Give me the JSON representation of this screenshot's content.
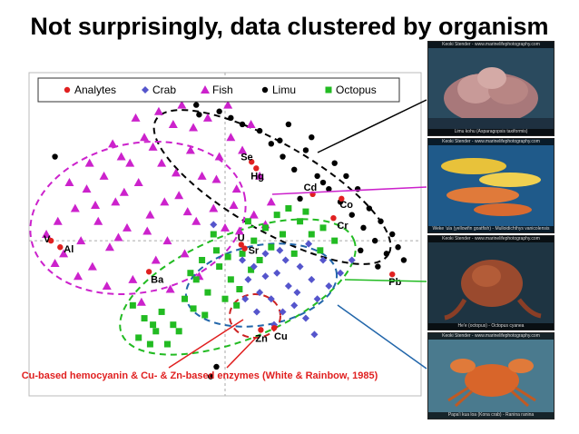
{
  "slide": {
    "title": "Not surprisingly, data clustered by organism",
    "annotation": "Cu-based hemocyanin & Cu- & Zn-based enzymes (White & Rainbow, 1985)",
    "annotation_color": "#e02020"
  },
  "photos": [
    {
      "name": "Limu",
      "credit": "Keoki Stender - www.marinelifephotography.com",
      "caption": "Limu kohu (Asparagopsis taxiformis)",
      "line_color": "#000000"
    },
    {
      "name": "Fish",
      "credit": "Keoki Stender - www.marinelifephotography.com",
      "caption": "Weke 'ula (yellowfin goatfish) - Mulloidichthys vanicolensis",
      "line_color": "#cc22cc"
    },
    {
      "name": "Octopus",
      "credit": "Keoki Stender - www.marinelifephotography.com",
      "caption": "He'e (octopus) - Octopus cyanea",
      "line_color": "#22bb22"
    },
    {
      "name": "Crab",
      "credit": "Keoki Stender - www.marinelifephotography.com",
      "caption": "Papa'i kua loa (Kona crab) - Ranina ranina",
      "line_color": "#2266aa"
    }
  ],
  "chart_data": {
    "type": "scatter",
    "title": "",
    "xlabel": "",
    "ylabel": "",
    "xlim": [
      -3.4,
      3.4
    ],
    "ylim": [
      -2.4,
      2.6
    ],
    "grid": "dashed crosshair at origin",
    "legend_position": "top",
    "series": [
      {
        "name": "Analytes",
        "color": "#e02020",
        "marker": "circle",
        "points": [
          [
            -3.02,
            0.0
          ],
          [
            -2.86,
            -0.1
          ],
          [
            -1.32,
            -0.48
          ],
          [
            0.46,
            1.22
          ],
          [
            0.54,
            1.12
          ],
          [
            1.52,
            0.72
          ],
          [
            2.02,
            0.65
          ],
          [
            1.88,
            0.35
          ],
          [
            0.28,
            -0.06
          ],
          [
            0.34,
            -0.12
          ],
          [
            2.9,
            -0.52
          ],
          [
            0.62,
            -1.38
          ],
          [
            0.85,
            -1.35
          ]
        ],
        "labels": [
          "V",
          "Al",
          "Ba",
          "Se",
          "Hg",
          "Cd",
          "Co",
          "Cr",
          "U",
          "Sr",
          "Pb",
          "Zn",
          "Cu"
        ]
      },
      {
        "name": "Crab",
        "color": "#5555cc",
        "marker": "diamond",
        "points": [
          [
            0.3,
            -0.3
          ],
          [
            0.5,
            -0.4
          ],
          [
            0.7,
            -0.2
          ],
          [
            0.9,
            -0.5
          ],
          [
            1.1,
            -0.7
          ],
          [
            1.3,
            -0.4
          ],
          [
            1.5,
            -0.6
          ],
          [
            0.6,
            -0.8
          ],
          [
            0.8,
            -0.9
          ],
          [
            1.0,
            -1.1
          ],
          [
            1.2,
            -1.0
          ],
          [
            1.4,
            -1.2
          ],
          [
            0.4,
            -0.6
          ],
          [
            0.7,
            -0.55
          ],
          [
            1.6,
            -0.9
          ],
          [
            1.8,
            -0.7
          ],
          [
            2.0,
            -0.5
          ],
          [
            1.7,
            -0.3
          ],
          [
            0.55,
            -1.1
          ],
          [
            0.85,
            -1.3
          ],
          [
            1.05,
            -0.3
          ],
          [
            1.25,
            -0.8
          ],
          [
            0.35,
            -0.9
          ],
          [
            1.45,
            -0.05
          ],
          [
            -0.2,
            0.25
          ],
          [
            2.2,
            -0.3
          ],
          [
            0.95,
            -0.15
          ],
          [
            1.55,
            -1.45
          ]
        ]
      },
      {
        "name": "Fish",
        "color": "#cc22cc",
        "marker": "triangle",
        "points": [
          [
            -3.1,
            0.1
          ],
          [
            -2.9,
            0.3
          ],
          [
            -2.8,
            -0.2
          ],
          [
            -2.6,
            0.5
          ],
          [
            -2.5,
            0.0
          ],
          [
            -2.4,
            0.8
          ],
          [
            -2.3,
            -0.4
          ],
          [
            -2.2,
            0.3
          ],
          [
            -2.1,
            1.0
          ],
          [
            -2.0,
            -0.1
          ],
          [
            -1.9,
            0.6
          ],
          [
            -1.8,
            1.3
          ],
          [
            -1.7,
            0.2
          ],
          [
            -1.6,
            -0.6
          ],
          [
            -1.5,
            0.9
          ],
          [
            -1.4,
            1.6
          ],
          [
            -1.3,
            0.4
          ],
          [
            -1.2,
            -0.3
          ],
          [
            -1.1,
            1.2
          ],
          [
            -1.0,
            0.0
          ],
          [
            -0.9,
            1.8
          ],
          [
            -0.8,
            0.7
          ],
          [
            -0.7,
            -0.2
          ],
          [
            -0.6,
            1.4
          ],
          [
            -0.5,
            0.3
          ],
          [
            -0.4,
            1.0
          ],
          [
            -0.3,
            1.9
          ],
          [
            -0.2,
            0.5
          ],
          [
            -0.1,
            1.3
          ],
          [
            0.0,
            0.2
          ],
          [
            0.1,
            1.6
          ],
          [
            0.2,
            0.8
          ],
          [
            0.3,
            1.4
          ],
          [
            0.5,
            0.4
          ],
          [
            0.6,
            1.0
          ],
          [
            0.8,
            0.6
          ],
          [
            -2.7,
            0.9
          ],
          [
            -2.35,
            1.2
          ],
          [
            -1.95,
            1.5
          ],
          [
            -1.55,
            1.9
          ],
          [
            -1.15,
            2.0
          ],
          [
            -0.75,
            2.1
          ],
          [
            -0.35,
            2.2
          ],
          [
            0.05,
            2.1
          ],
          [
            0.45,
            1.8
          ],
          [
            -2.55,
            -0.55
          ],
          [
            -2.05,
            -0.7
          ],
          [
            -1.45,
            -0.95
          ],
          [
            -0.95,
            -0.75
          ],
          [
            -0.45,
            -0.55
          ],
          [
            -1.75,
            0.75
          ],
          [
            -1.25,
            1.45
          ],
          [
            -0.65,
            0.45
          ],
          [
            -0.15,
            0.95
          ],
          [
            -2.25,
            0.55
          ],
          [
            -1.85,
            0.05
          ],
          [
            -1.05,
            0.6
          ],
          [
            -0.55,
            1.75
          ],
          [
            0.25,
            0.15
          ],
          [
            0.7,
            0.25
          ],
          [
            -2.95,
            -0.35
          ],
          [
            -1.35,
            0.15
          ],
          [
            -0.85,
            1.05
          ],
          [
            0.15,
            0.55
          ],
          [
            -1.65,
            1.2
          ]
        ]
      },
      {
        "name": "Limu",
        "color": "#000000",
        "marker": "circle",
        "points": [
          [
            -0.5,
            2.1
          ],
          [
            -0.3,
            2.2
          ],
          [
            -0.1,
            2.0
          ],
          [
            0.1,
            1.9
          ],
          [
            0.6,
            1.7
          ],
          [
            0.8,
            1.5
          ],
          [
            1.0,
            1.3
          ],
          [
            1.2,
            1.1
          ],
          [
            1.4,
            1.4
          ],
          [
            1.6,
            1.0
          ],
          [
            1.8,
            0.8
          ],
          [
            2.0,
            0.6
          ],
          [
            2.2,
            0.4
          ],
          [
            2.4,
            0.2
          ],
          [
            2.6,
            0.0
          ],
          [
            2.8,
            -0.2
          ],
          [
            3.0,
            -0.1
          ],
          [
            2.5,
            0.5
          ],
          [
            2.3,
            0.8
          ],
          [
            2.1,
            1.0
          ],
          [
            1.9,
            1.2
          ],
          [
            1.7,
            0.9
          ],
          [
            2.7,
            0.3
          ],
          [
            2.9,
            0.1
          ],
          [
            3.1,
            -0.3
          ],
          [
            1.5,
            1.6
          ],
          [
            1.1,
            1.8
          ],
          [
            0.3,
            1.8
          ],
          [
            -0.45,
            1.95
          ],
          [
            -2.95,
            1.3
          ],
          [
            2.35,
            -0.15
          ],
          [
            2.65,
            -0.4
          ],
          [
            1.3,
            0.65
          ],
          [
            0.95,
            1.55
          ],
          [
            -0.25,
            -2.1
          ],
          [
            -0.15,
            -1.95
          ]
        ]
      },
      {
        "name": "Octopus",
        "color": "#22bb22",
        "marker": "square",
        "points": [
          [
            -1.6,
            -1.0
          ],
          [
            -1.4,
            -1.2
          ],
          [
            -1.2,
            -1.4
          ],
          [
            -1.5,
            -1.5
          ],
          [
            -1.3,
            -1.6
          ],
          [
            -1.1,
            -1.1
          ],
          [
            -0.9,
            -1.3
          ],
          [
            -0.7,
            -0.9
          ],
          [
            -0.5,
            -0.6
          ],
          [
            -0.3,
            -0.8
          ],
          [
            -0.1,
            -0.4
          ],
          [
            0.1,
            -0.6
          ],
          [
            0.3,
            -0.2
          ],
          [
            0.5,
            0.0
          ],
          [
            0.7,
            0.2
          ],
          [
            0.9,
            0.4
          ],
          [
            1.1,
            0.5
          ],
          [
            1.3,
            0.3
          ],
          [
            1.5,
            0.1
          ],
          [
            1.7,
            0.2
          ],
          [
            1.9,
            0.0
          ],
          [
            0.0,
            -0.9
          ],
          [
            0.2,
            -1.0
          ],
          [
            -0.4,
            -0.3
          ],
          [
            -0.6,
            -0.5
          ],
          [
            -0.2,
            0.1
          ],
          [
            0.4,
            0.3
          ],
          [
            0.6,
            -0.3
          ],
          [
            0.8,
            -0.1
          ],
          [
            1.0,
            0.1
          ],
          [
            -1.0,
            -1.6
          ],
          [
            -0.8,
            -1.4
          ],
          [
            1.2,
            -0.2
          ],
          [
            0.05,
            -0.25
          ],
          [
            -0.35,
            -1.15
          ],
          [
            1.65,
            -0.15
          ],
          [
            -1.25,
            -1.3
          ],
          [
            -0.55,
            -1.05
          ],
          [
            0.45,
            -0.45
          ],
          [
            0.25,
            -0.75
          ],
          [
            1.4,
            0.45
          ],
          [
            -0.15,
            -0.15
          ]
        ]
      }
    ],
    "ellipses": [
      {
        "group": "Limu",
        "color": "#000000"
      },
      {
        "group": "Fish",
        "color": "#cc22cc"
      },
      {
        "group": "Octopus",
        "color": "#22bb22"
      },
      {
        "group": "Crab",
        "color": "#2266aa"
      },
      {
        "group": "Zn-Cu",
        "color": "#cc2222"
      }
    ]
  }
}
